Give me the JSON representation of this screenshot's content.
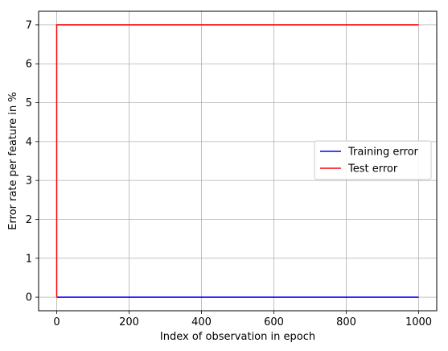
{
  "chart_data": {
    "type": "line",
    "title": "",
    "xlabel": "Index of observation in epoch",
    "ylabel": "Error rate per feature in %",
    "xlim": [
      -50,
      1050
    ],
    "ylim": [
      -0.35,
      7.35
    ],
    "xticks": [
      0,
      200,
      400,
      600,
      800,
      1000
    ],
    "yticks": [
      0,
      1,
      2,
      3,
      4,
      5,
      6,
      7
    ],
    "grid": true,
    "legend_position": "center-right",
    "series": [
      {
        "name": "Training error",
        "color": "#0000ff",
        "x": [
          0,
          1000
        ],
        "y": [
          0,
          0
        ]
      },
      {
        "name": "Test error",
        "color": "#ff0000",
        "x": [
          0,
          0,
          1000
        ],
        "y": [
          0,
          7,
          7
        ]
      }
    ]
  }
}
